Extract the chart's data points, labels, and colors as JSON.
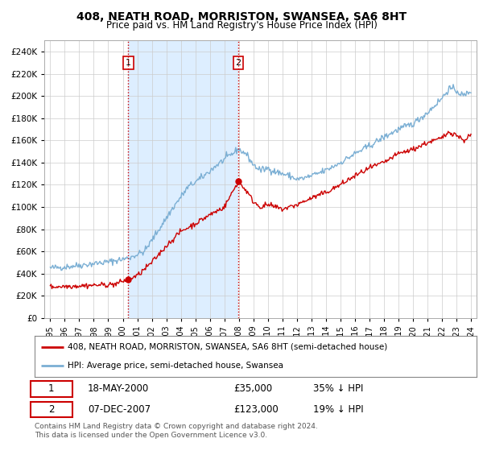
{
  "title": "408, NEATH ROAD, MORRISTON, SWANSEA, SA6 8HT",
  "subtitle": "Price paid vs. HM Land Registry's House Price Index (HPI)",
  "ylim": [
    0,
    250000
  ],
  "yticks": [
    0,
    20000,
    40000,
    60000,
    80000,
    100000,
    120000,
    140000,
    160000,
    180000,
    200000,
    220000,
    240000
  ],
  "x_start_year": 1995,
  "x_end_year": 2024,
  "hpi_color": "#7bafd4",
  "price_color": "#cc0000",
  "vline_color": "#cc0000",
  "shade_color": "#ddeeff",
  "annotation1": {
    "label": "1",
    "year": 2000.38,
    "price": 35000
  },
  "annotation2": {
    "label": "2",
    "year": 2007.92,
    "price": 123000
  },
  "legend_label1": "408, NEATH ROAD, MORRISTON, SWANSEA, SA6 8HT (semi-detached house)",
  "legend_label2": "HPI: Average price, semi-detached house, Swansea",
  "table_row1_date": "18-MAY-2000",
  "table_row1_price": "£35,000",
  "table_row1_pct": "35% ↓ HPI",
  "table_row2_date": "07-DEC-2007",
  "table_row2_price": "£123,000",
  "table_row2_pct": "19% ↓ HPI",
  "footer": "Contains HM Land Registry data © Crown copyright and database right 2024.\nThis data is licensed under the Open Government Licence v3.0.",
  "background_color": "#ffffff",
  "grid_color": "#cccccc"
}
